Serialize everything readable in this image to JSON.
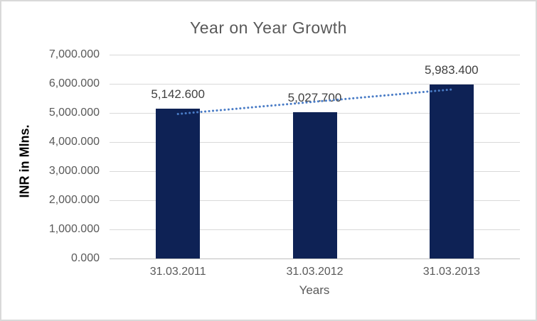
{
  "chart_data": {
    "type": "bar",
    "title": "Year on Year Growth",
    "xlabel": "Years",
    "ylabel": "INR in Mlns.",
    "categories": [
      "31.03.2011",
      "31.03.2012",
      "31.03.2013"
    ],
    "values": [
      5142.6,
      5027.7,
      5983.4
    ],
    "value_labels": [
      "5,142.600",
      "5,027.700",
      "5,983.400"
    ],
    "y_tick_labels": [
      "0.000",
      "1,000.000",
      "2,000.000",
      "3,000.000",
      "4,000.000",
      "5,000.000",
      "6,000.000",
      "7,000.000"
    ],
    "y_ticks": [
      0,
      1000,
      2000,
      3000,
      4000,
      5000,
      6000,
      7000
    ],
    "ylim": [
      0,
      7000
    ],
    "grid": "horizontal",
    "legend": "none",
    "trendline": {
      "type": "linear",
      "style": "dotted"
    },
    "colors": {
      "bar": "#0e2255",
      "trendline": "#4a7cc6",
      "gridline": "#d9d9d9",
      "axis_line": "#bfbfbf",
      "title_text": "#595959",
      "tick_text": "#595959",
      "data_label_text": "#404040",
      "border": "#d9d9d9",
      "background": "#ffffff"
    }
  }
}
